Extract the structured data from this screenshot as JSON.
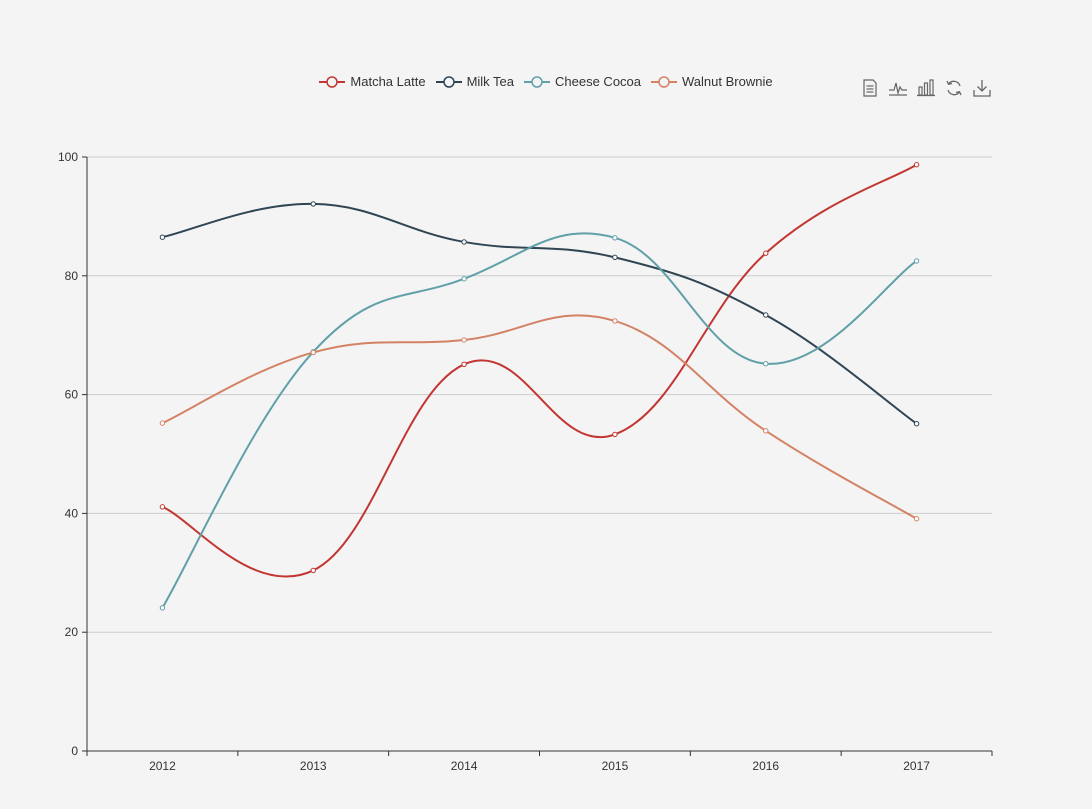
{
  "legend": {
    "items": [
      {
        "label": "Matcha Latte",
        "color": "#c23531"
      },
      {
        "label": "Milk Tea",
        "color": "#2f4554"
      },
      {
        "label": "Cheese Cocoa",
        "color": "#61a0a8"
      },
      {
        "label": "Walnut Brownie",
        "color": "#d48265"
      }
    ]
  },
  "toolbox": {
    "icons": [
      "data-view-icon",
      "line-chart-icon",
      "bar-chart-icon",
      "restore-icon",
      "save-image-icon"
    ]
  },
  "chart_data": {
    "type": "line",
    "smooth": true,
    "categories": [
      "2012",
      "2013",
      "2014",
      "2015",
      "2016",
      "2017"
    ],
    "ylim": [
      0,
      100
    ],
    "yticks": [
      0,
      20,
      40,
      60,
      80,
      100
    ],
    "grid": true,
    "legend_position": "top-center",
    "series": [
      {
        "name": "Matcha Latte",
        "color": "#c23531",
        "values": [
          41.1,
          30.4,
          65.1,
          53.3,
          83.8,
          98.7
        ]
      },
      {
        "name": "Milk Tea",
        "color": "#2f4554",
        "values": [
          86.5,
          92.1,
          85.7,
          83.1,
          73.4,
          55.1
        ]
      },
      {
        "name": "Cheese Cocoa",
        "color": "#61a0a8",
        "values": [
          24.1,
          67.2,
          79.5,
          86.4,
          65.2,
          82.5
        ]
      },
      {
        "name": "Walnut Brownie",
        "color": "#d48265",
        "values": [
          55.2,
          67.1,
          69.2,
          72.4,
          53.9,
          39.1
        ]
      }
    ]
  }
}
